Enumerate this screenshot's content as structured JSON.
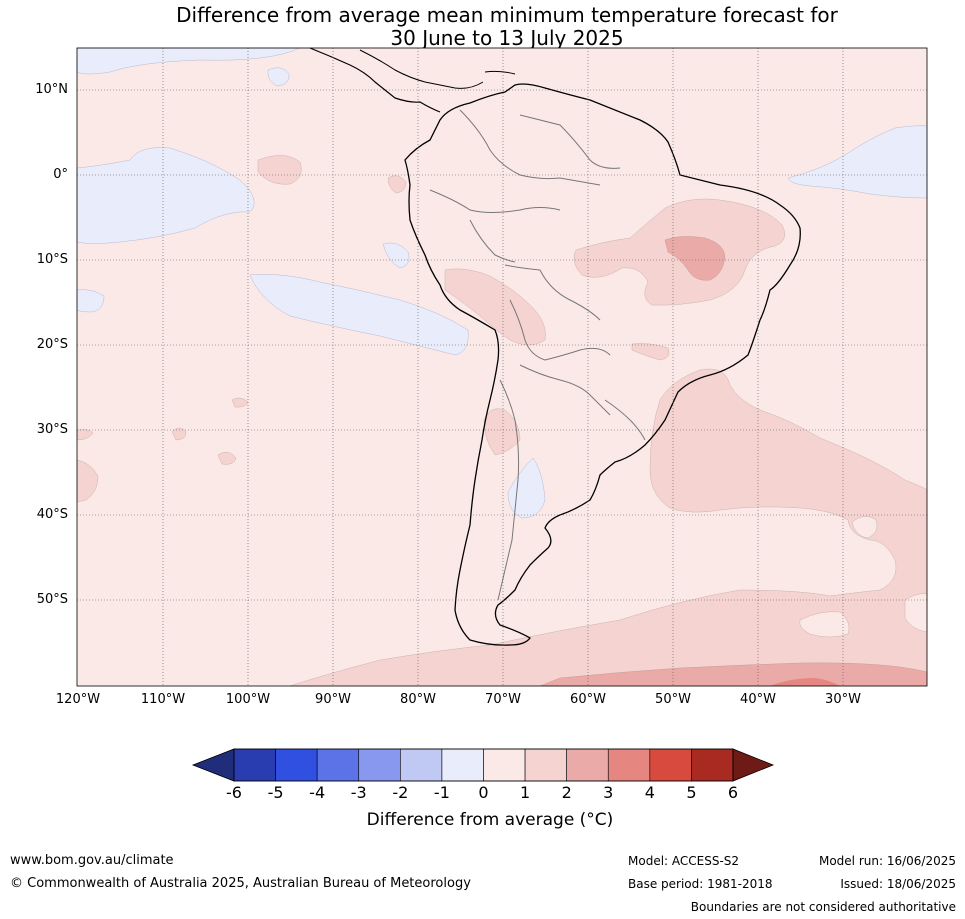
{
  "title_line1": "Difference from average mean minimum temperature forecast for",
  "title_line2": "30 June to 13 July 2025",
  "lat_labels": [
    "10°N",
    "0°",
    "10°S",
    "20°S",
    "30°S",
    "40°S",
    "50°S"
  ],
  "lon_labels": [
    "120°W",
    "110°W",
    "100°W",
    "90°W",
    "80°W",
    "70°W",
    "60°W",
    "50°W",
    "40°W",
    "30°W"
  ],
  "colorbar": {
    "ticks": [
      "-6",
      "-5",
      "-4",
      "-3",
      "-2",
      "-1",
      "0",
      "1",
      "2",
      "3",
      "4",
      "5",
      "6"
    ],
    "colors": [
      "#1f2d7a",
      "#2a3db0",
      "#2f50e0",
      "#5b73e6",
      "#8898ee",
      "#c0c8f4",
      "#e8ecfb",
      "#fbe9e8",
      "#f5d3d1",
      "#eaaba8",
      "#e58680",
      "#d94a3e",
      "#a82a20",
      "#6e1a16"
    ],
    "title": "Difference from average ($^\\circ$C)",
    "title_display": "Difference from average (°C)"
  },
  "footer": {
    "url": "www.bom.gov.au/climate",
    "copyright": "© Commonwealth of Australia 2025, Australian Bureau of Meteorology",
    "model": "Model: ACCESS-S2",
    "base_period": "Base period: 1981-2018",
    "model_run": "Model run: 16/06/2025",
    "issued": "Issued: 18/06/2025",
    "disclaimer": "Boundaries are not considered authoritative"
  }
}
